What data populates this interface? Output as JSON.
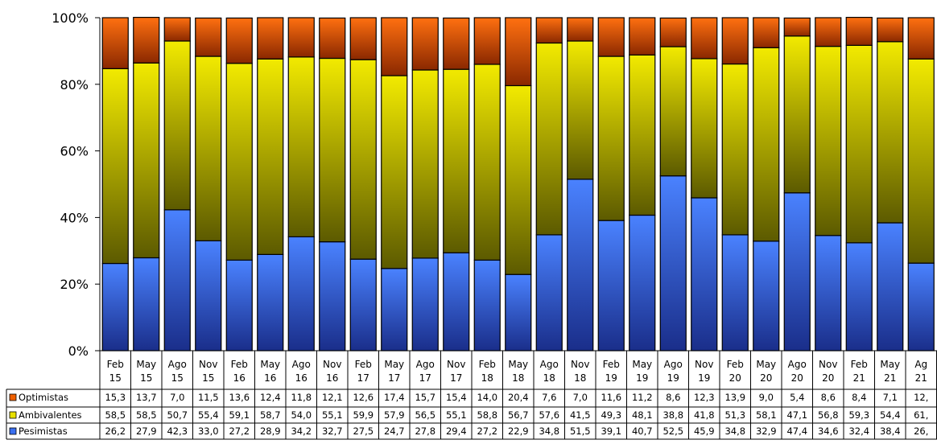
{
  "chart_data": {
    "type": "bar",
    "stacked": true,
    "percent": true,
    "title": "",
    "xlabel": "",
    "ylabel": "",
    "ylim": [
      0,
      100
    ],
    "yticks": [
      "0%",
      "20%",
      "40%",
      "60%",
      "80%",
      "100%"
    ],
    "grid": false,
    "legend": "data-table-left",
    "categories": [
      [
        "Feb",
        "15"
      ],
      [
        "May",
        "15"
      ],
      [
        "Ago",
        "15"
      ],
      [
        "Nov",
        "15"
      ],
      [
        "Feb",
        "16"
      ],
      [
        "May",
        "16"
      ],
      [
        "Ago",
        "16"
      ],
      [
        "Nov",
        "16"
      ],
      [
        "Feb",
        "17"
      ],
      [
        "May",
        "17"
      ],
      [
        "Ago",
        "17"
      ],
      [
        "Nov",
        "17"
      ],
      [
        "Feb",
        "18"
      ],
      [
        "May",
        "18"
      ],
      [
        "Ago",
        "18"
      ],
      [
        "Nov",
        "18"
      ],
      [
        "Feb",
        "19"
      ],
      [
        "May",
        "19"
      ],
      [
        "Ago",
        "19"
      ],
      [
        "Nov",
        "19"
      ],
      [
        "Feb",
        "20"
      ],
      [
        "May",
        "20"
      ],
      [
        "Ago",
        "20"
      ],
      [
        "Nov",
        "20"
      ],
      [
        "Feb",
        "21"
      ],
      [
        "May",
        "21"
      ],
      [
        "Ag",
        "21"
      ]
    ],
    "series": [
      {
        "name": "Pesimistas",
        "color": "#3a6ff0",
        "values": [
          26.2,
          27.9,
          42.3,
          33.0,
          27.2,
          28.9,
          34.2,
          32.7,
          27.5,
          24.7,
          27.8,
          29.4,
          27.2,
          22.9,
          34.8,
          51.5,
          39.1,
          40.7,
          52.5,
          45.9,
          34.8,
          32.9,
          47.4,
          34.6,
          32.4,
          38.4,
          26.3
        ],
        "labels": [
          "26,2",
          "27,9",
          "42,3",
          "33,0",
          "27,2",
          "28,9",
          "34,2",
          "32,7",
          "27,5",
          "24,7",
          "27,8",
          "29,4",
          "27,2",
          "22,9",
          "34,8",
          "51,5",
          "39,1",
          "40,7",
          "52,5",
          "45,9",
          "34,8",
          "32,9",
          "47,4",
          "34,6",
          "32,4",
          "38,4",
          "26,"
        ]
      },
      {
        "name": "Ambivalentes",
        "color": "#e8e000",
        "values": [
          58.5,
          58.5,
          50.7,
          55.4,
          59.1,
          58.7,
          54.0,
          55.1,
          59.9,
          57.9,
          56.5,
          55.1,
          58.8,
          56.7,
          57.6,
          41.5,
          49.3,
          48.1,
          38.8,
          41.8,
          51.3,
          58.1,
          47.1,
          56.8,
          59.3,
          54.4,
          61.3
        ],
        "labels": [
          "58,5",
          "58,5",
          "50,7",
          "55,4",
          "59,1",
          "58,7",
          "54,0",
          "55,1",
          "59,9",
          "57,9",
          "56,5",
          "55,1",
          "58,8",
          "56,7",
          "57,6",
          "41,5",
          "49,3",
          "48,1",
          "38,8",
          "41,8",
          "51,3",
          "58,1",
          "47,1",
          "56,8",
          "59,3",
          "54,4",
          "61,"
        ]
      },
      {
        "name": "Optimistas",
        "color": "#f06000",
        "values": [
          15.3,
          13.7,
          7.0,
          11.5,
          13.6,
          12.4,
          11.8,
          12.1,
          12.6,
          17.4,
          15.7,
          15.4,
          14.0,
          20.4,
          7.6,
          7.0,
          11.6,
          11.2,
          8.6,
          12.3,
          13.9,
          9.0,
          5.4,
          8.6,
          8.4,
          7.1,
          12.4
        ],
        "labels": [
          "15,3",
          "13,7",
          "7,0",
          "11,5",
          "13,6",
          "12,4",
          "11,8",
          "12,1",
          "12,6",
          "17,4",
          "15,7",
          "15,4",
          "14,0",
          "20,4",
          "7,6",
          "7,0",
          "11,6",
          "11,2",
          "8,6",
          "12,3",
          "13,9",
          "9,0",
          "5,4",
          "8,6",
          "8,4",
          "7,1",
          "12,"
        ]
      }
    ]
  }
}
